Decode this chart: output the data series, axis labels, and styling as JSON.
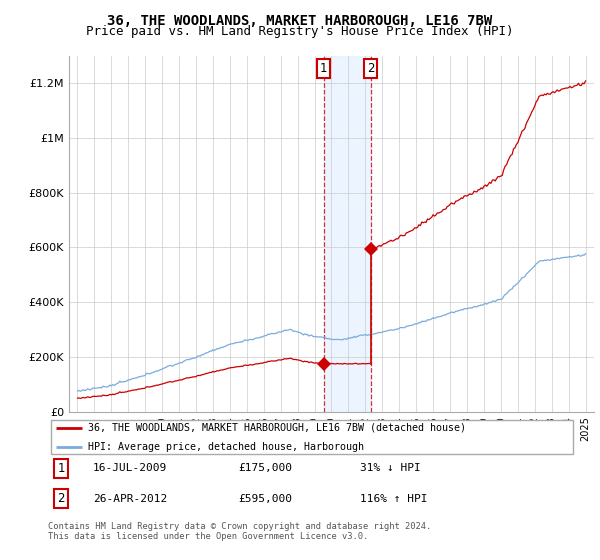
{
  "title": "36, THE WOODLANDS, MARKET HARBOROUGH, LE16 7BW",
  "subtitle": "Price paid vs. HM Land Registry's House Price Index (HPI)",
  "title_fontsize": 10,
  "subtitle_fontsize": 9,
  "red_label": "36, THE WOODLANDS, MARKET HARBOROUGH, LE16 7BW (detached house)",
  "blue_label": "HPI: Average price, detached house, Harborough",
  "transaction1_date": "16-JUL-2009",
  "transaction1_price": "£175,000",
  "transaction1_hpi": "31% ↓ HPI",
  "transaction2_date": "26-APR-2012",
  "transaction2_price": "£595,000",
  "transaction2_hpi": "116% ↑ HPI",
  "footnote": "Contains HM Land Registry data © Crown copyright and database right 2024.\nThis data is licensed under the Open Government Licence v3.0.",
  "red_color": "#cc0000",
  "blue_color": "#7aacdc",
  "background_color": "#ffffff",
  "grid_color": "#cccccc",
  "ylim": [
    0,
    1300000
  ],
  "yticks": [
    0,
    200000,
    400000,
    600000,
    800000,
    1000000,
    1200000
  ],
  "ytick_labels": [
    "£0",
    "£200K",
    "£400K",
    "£600K",
    "£800K",
    "£1M",
    "£1.2M"
  ],
  "transaction1_x": 2009.54,
  "transaction1_y": 175000,
  "transaction2_x": 2012.32,
  "transaction2_y": 595000,
  "shade_xmin": 2009.54,
  "shade_xmax": 2012.32,
  "xmin": 1994.5,
  "xmax": 2025.5
}
